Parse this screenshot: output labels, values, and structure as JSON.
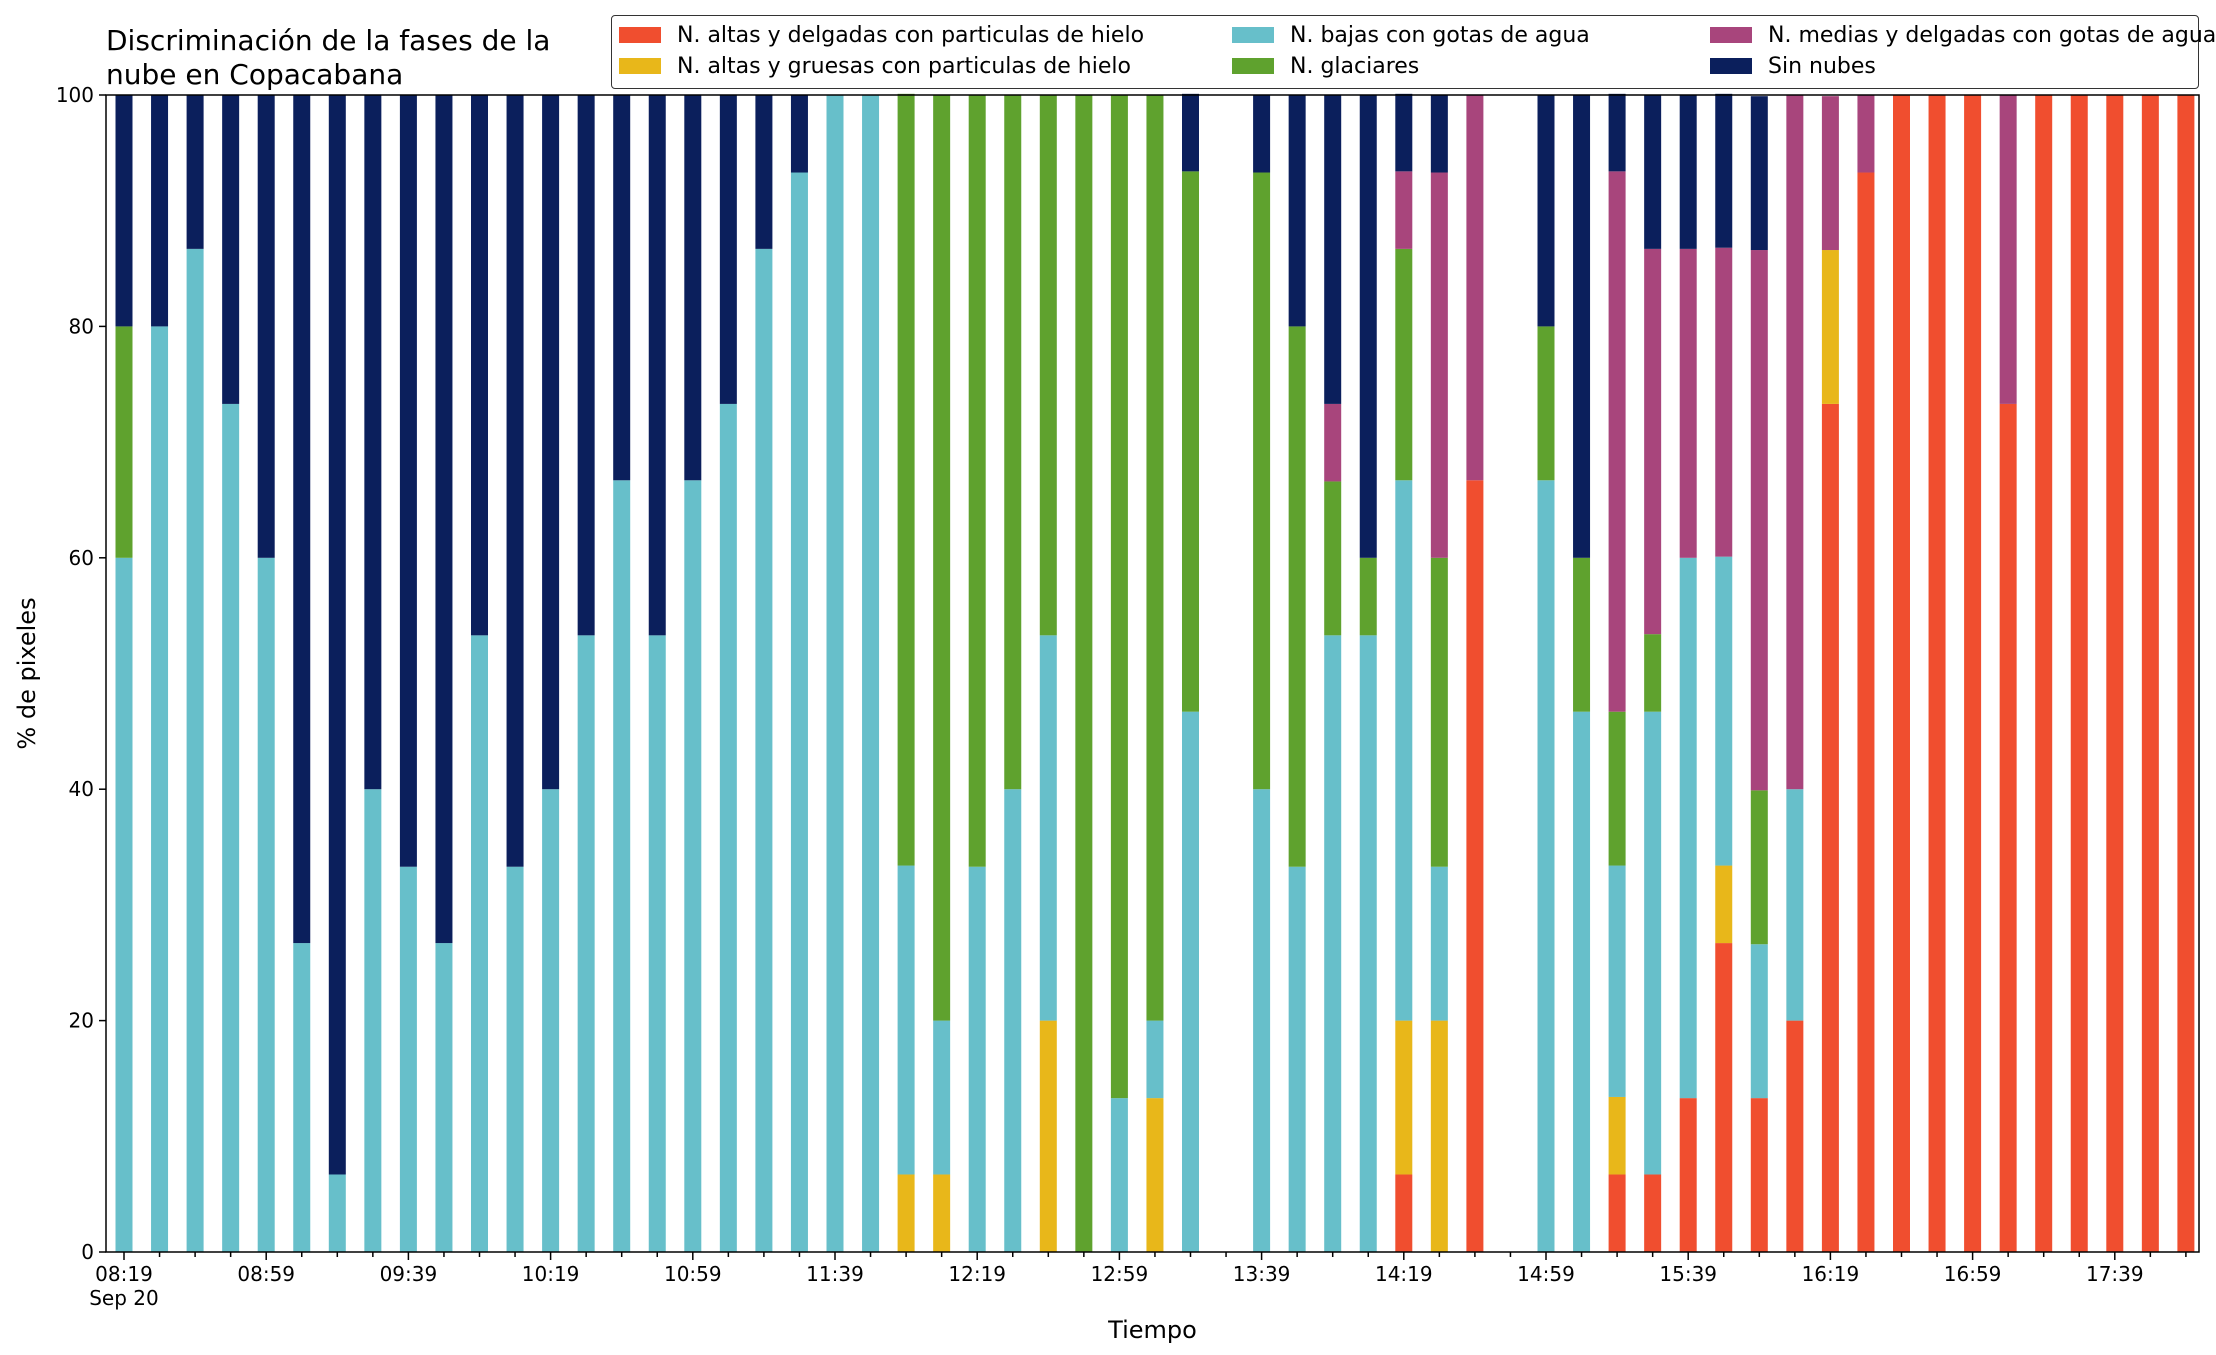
{
  "chart_data": {
    "type": "bar",
    "stacked": true,
    "title": "Discriminación de la fases de la\nnube en Copacabana",
    "xlabel": "Tiempo",
    "ylabel": "% de pixeles",
    "ylim": [
      0,
      100
    ],
    "yticks": [
      0,
      20,
      40,
      60,
      80,
      100
    ],
    "legend_position": "top-right",
    "grid": false,
    "x_tick_labels": [
      "08:19",
      "08:59",
      "09:39",
      "10:19",
      "10:59",
      "11:39",
      "12:19",
      "12:59",
      "13:39",
      "14:19",
      "14:59",
      "15:39",
      "16:19",
      "16:59",
      "17:39"
    ],
    "x_date_label": "Sep 20",
    "categories": [
      "08:19",
      "08:29",
      "08:39",
      "08:49",
      "08:59",
      "09:09",
      "09:19",
      "09:29",
      "09:39",
      "09:49",
      "09:59",
      "10:09",
      "10:19",
      "10:29",
      "10:39",
      "10:49",
      "10:59",
      "11:09",
      "11:19",
      "11:29",
      "11:39",
      "11:49",
      "11:59",
      "12:09",
      "12:19",
      "12:29",
      "12:39",
      "12:49",
      "12:59",
      "13:09",
      "13:19",
      "13:29",
      "13:39",
      "13:49",
      "13:59",
      "14:09",
      "14:19",
      "14:29",
      "14:39",
      "14:49",
      "14:59",
      "15:09",
      "15:19",
      "15:29",
      "15:39",
      "15:49",
      "15:59",
      "16:09",
      "16:19",
      "16:29",
      "16:39",
      "16:49",
      "16:59",
      "17:09",
      "17:19",
      "17:29",
      "17:39",
      "17:49",
      "17:59"
    ],
    "series": [
      {
        "name": "N. altas y delgadas con particulas de hielo",
        "color": "#f04e2f",
        "values": [
          0,
          0,
          0,
          0,
          0,
          0,
          0,
          0,
          0,
          0,
          0,
          0,
          0,
          0,
          0,
          0,
          0,
          0,
          0,
          0,
          0,
          0,
          0,
          0,
          0,
          0,
          0,
          0,
          0,
          0,
          0,
          0,
          0,
          0,
          0,
          0,
          6.7,
          0,
          66.7,
          0,
          0,
          0,
          6.7,
          6.7,
          13.3,
          26.7,
          13.3,
          20,
          73.3,
          93.3,
          100,
          100,
          100,
          73.3,
          100,
          100,
          100,
          100,
          100
        ]
      },
      {
        "name": "N. altas y gruesas con particulas de hielo",
        "color": "#e8b71a",
        "values": [
          0,
          0,
          0,
          0,
          0,
          0,
          0,
          0,
          0,
          0,
          0,
          0,
          0,
          0,
          0,
          0,
          0,
          0,
          0,
          0,
          0,
          0,
          6.7,
          6.7,
          0,
          0,
          20,
          0,
          0,
          13.3,
          0,
          0,
          0,
          0,
          0,
          0,
          13.3,
          20,
          0,
          0,
          0,
          0,
          6.7,
          0,
          0,
          6.7,
          0,
          0,
          13.3,
          0,
          0,
          0,
          0,
          0,
          0,
          0,
          0,
          0,
          0
        ]
      },
      {
        "name": "N. bajas con gotas de agua",
        "color": "#67bfca",
        "values": [
          60,
          80,
          86.7,
          73.3,
          60,
          26.7,
          6.7,
          40,
          33.3,
          26.7,
          53.3,
          33.3,
          40,
          53.3,
          66.7,
          53.3,
          66.7,
          73.3,
          86.7,
          93.3,
          100,
          100,
          26.7,
          13.3,
          33.3,
          40,
          33.3,
          0,
          13.3,
          6.7,
          46.7,
          0,
          40,
          33.3,
          53.3,
          53.3,
          46.7,
          13.3,
          0,
          0,
          66.7,
          46.7,
          20,
          40,
          46.7,
          26.7,
          13.3,
          20,
          0,
          0,
          0,
          0,
          0,
          0,
          0,
          0,
          0,
          0,
          0
        ]
      },
      {
        "name": "N. glaciares",
        "color": "#5fa22e",
        "values": [
          20,
          0,
          0,
          0,
          0,
          0,
          0,
          0,
          0,
          0,
          0,
          0,
          0,
          0,
          0,
          0,
          0,
          0,
          0,
          0,
          0,
          0,
          66.7,
          80,
          66.7,
          60,
          46.7,
          100,
          86.7,
          80,
          46.7,
          0,
          53.3,
          46.7,
          13.3,
          6.7,
          20,
          26.7,
          0,
          0,
          13.3,
          13.3,
          13.3,
          6.7,
          0,
          0,
          13.3,
          0,
          0,
          0,
          0,
          0,
          0,
          0,
          0,
          0,
          0,
          0,
          0
        ]
      },
      {
        "name": "N. medias y delgadas con gotas de agua",
        "color": "#a8457c",
        "values": [
          0,
          0,
          0,
          0,
          0,
          0,
          0,
          0,
          0,
          0,
          0,
          0,
          0,
          0,
          0,
          0,
          0,
          0,
          0,
          0,
          0,
          0,
          0,
          0,
          0,
          0,
          0,
          0,
          0,
          0,
          0,
          0,
          0,
          0,
          6.7,
          0,
          6.7,
          33.3,
          33.3,
          0,
          0,
          0,
          46.7,
          33.3,
          26.7,
          26.7,
          46.7,
          60,
          13.3,
          6.7,
          0,
          0,
          0,
          26.7,
          0,
          0,
          0,
          0,
          0
        ]
      },
      {
        "name": "Sin nubes",
        "color": "#0b1f5c",
        "values": [
          20,
          20,
          13.3,
          26.7,
          40,
          73.3,
          93.3,
          60,
          66.7,
          73.3,
          46.7,
          66.7,
          60,
          46.7,
          33.3,
          46.7,
          33.3,
          26.7,
          13.3,
          6.7,
          0,
          0,
          0,
          0,
          0,
          0,
          0,
          0,
          0,
          0,
          6.7,
          0,
          6.7,
          20,
          26.7,
          40,
          6.7,
          6.7,
          0,
          0,
          20,
          40,
          6.7,
          13.3,
          13.3,
          13.3,
          13.3,
          0,
          0,
          0,
          0,
          0,
          0,
          0,
          0,
          0,
          0,
          0,
          0
        ]
      }
    ]
  }
}
